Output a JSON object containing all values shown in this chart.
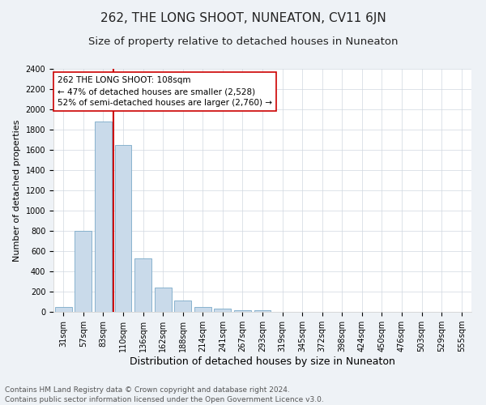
{
  "title": "262, THE LONG SHOOT, NUNEATON, CV11 6JN",
  "subtitle": "Size of property relative to detached houses in Nuneaton",
  "xlabel": "Distribution of detached houses by size in Nuneaton",
  "ylabel": "Number of detached properties",
  "categories": [
    "31sqm",
    "57sqm",
    "83sqm",
    "110sqm",
    "136sqm",
    "162sqm",
    "188sqm",
    "214sqm",
    "241sqm",
    "267sqm",
    "293sqm",
    "319sqm",
    "345sqm",
    "372sqm",
    "398sqm",
    "424sqm",
    "450sqm",
    "476sqm",
    "503sqm",
    "529sqm",
    "555sqm"
  ],
  "values": [
    50,
    800,
    1880,
    1650,
    530,
    240,
    110,
    50,
    30,
    20,
    20,
    0,
    0,
    0,
    0,
    0,
    0,
    0,
    0,
    0,
    0
  ],
  "bar_color": "#c9daea",
  "bar_edge_color": "#7aaac8",
  "vline_color": "#cc0000",
  "vline_x_index": 3,
  "annotation_text": "262 THE LONG SHOOT: 108sqm\n← 47% of detached houses are smaller (2,528)\n52% of semi-detached houses are larger (2,760) →",
  "annotation_box_color": "#ffffff",
  "annotation_box_edge": "#cc0000",
  "ylim": [
    0,
    2400
  ],
  "yticks": [
    0,
    200,
    400,
    600,
    800,
    1000,
    1200,
    1400,
    1600,
    1800,
    2000,
    2200,
    2400
  ],
  "bg_color": "#eef2f6",
  "plot_bg_color": "#ffffff",
  "grid_color": "#d0d8e0",
  "footer": "Contains HM Land Registry data © Crown copyright and database right 2024.\nContains public sector information licensed under the Open Government Licence v3.0.",
  "title_fontsize": 11,
  "subtitle_fontsize": 9.5,
  "xlabel_fontsize": 9,
  "ylabel_fontsize": 8,
  "tick_fontsize": 7,
  "annotation_fontsize": 7.5,
  "footer_fontsize": 6.5
}
